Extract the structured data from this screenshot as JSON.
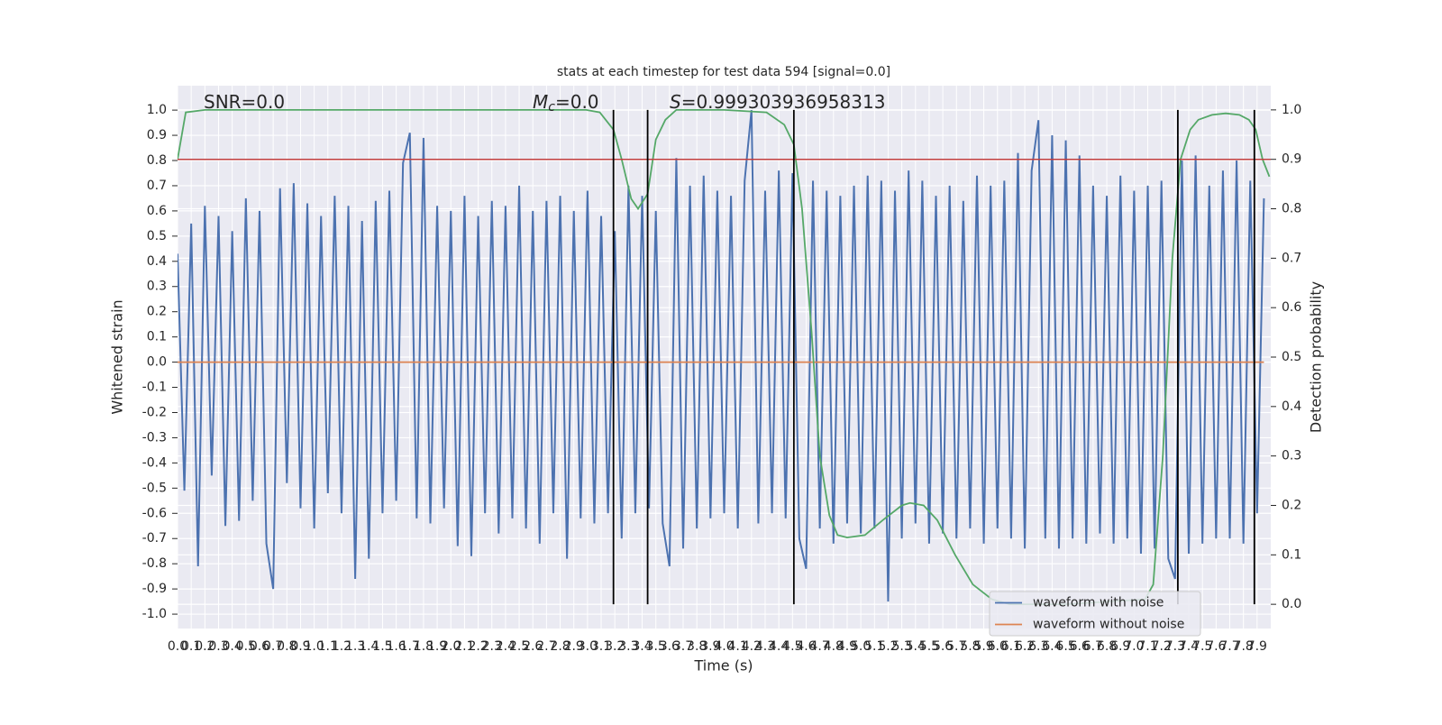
{
  "chart_data": {
    "type": "line",
    "title": "stats at each timestep for test data 594 [signal=0.0]",
    "xlabel": "Time (s)",
    "ylabel": "Whitened strain",
    "y2label": "Detection probability",
    "xlim": [
      0,
      8
    ],
    "ylim": [
      -1.057,
      1.097
    ],
    "y2lim": [
      -0.049,
      1.049
    ],
    "xticks": [
      {
        "value": 0,
        "label": "0.0"
      },
      0.1,
      0.2,
      0.3,
      0.4,
      0.5,
      0.6,
      0.7,
      0.8,
      0.9,
      {
        "value": 1,
        "label": "1.0"
      },
      1.1,
      1.2,
      1.3,
      1.4,
      1.5,
      1.6,
      1.7,
      1.8,
      1.9,
      {
        "value": 2,
        "label": "2.0"
      },
      2.1,
      2.2,
      2.3,
      2.4,
      2.5,
      2.6,
      2.7,
      2.8,
      2.9,
      {
        "value": 3,
        "label": "3.0"
      },
      3.1,
      3.2,
      3.3,
      3.4,
      3.5,
      3.6,
      3.7,
      3.8,
      3.9,
      {
        "value": 4,
        "label": "4.0"
      },
      4.1,
      4.2,
      4.3,
      4.4,
      4.5,
      4.6,
      4.7,
      4.8,
      4.9,
      {
        "value": 5,
        "label": "5.0"
      },
      5.1,
      5.2,
      5.3,
      5.4,
      5.5,
      5.6,
      5.7,
      5.8,
      5.9,
      {
        "value": 6,
        "label": "6.0"
      },
      6.1,
      6.2,
      6.3,
      6.4,
      6.5,
      6.6,
      6.7,
      6.8,
      6.9,
      {
        "value": 7,
        "label": "7.0"
      },
      7.1,
      7.2,
      7.3,
      7.4,
      7.5,
      7.6,
      7.7,
      7.8,
      7.9
    ],
    "yticks": [
      {
        "value": -1,
        "label": "-1.0"
      },
      -0.9,
      -0.8,
      -0.7,
      -0.6,
      -0.5,
      -0.4,
      -0.3,
      -0.2,
      -0.1,
      {
        "value": 0,
        "label": "0.0"
      },
      0.1,
      0.2,
      0.3,
      0.4,
      0.5,
      0.6,
      0.7,
      0.8,
      0.9,
      {
        "value": 1,
        "label": "1.0"
      }
    ],
    "y2ticks": [
      {
        "value": 0,
        "label": "0.0"
      },
      0.1,
      0.2,
      0.3,
      0.4,
      0.5,
      0.6,
      0.7,
      0.8,
      0.9,
      {
        "value": 1,
        "label": "1.0"
      }
    ],
    "grid": true,
    "legend": "lower right",
    "annotations": [
      {
        "text": "SNR=0.0"
      },
      {
        "italic": "M",
        "sub": "c",
        "text": "=0.0"
      },
      {
        "italic": "S",
        "text": "=0.999303936958313"
      }
    ],
    "threshold": {
      "value": 0.9,
      "axis": "y2",
      "color": "#c03d3e"
    },
    "vlines": [
      3.19,
      3.44,
      4.51,
      7.32,
      7.88
    ],
    "series": [
      {
        "name": "waveform with noise",
        "color": "#4c72b0",
        "legend": true,
        "x": [
          0,
          0.05,
          0.1,
          0.15,
          0.2,
          0.25,
          0.3,
          0.35,
          0.4,
          0.45,
          0.5,
          0.55,
          0.6,
          0.65,
          0.7,
          0.75,
          0.8,
          0.85,
          0.9,
          0.95,
          1,
          1.05,
          1.1,
          1.15,
          1.2,
          1.25,
          1.3,
          1.35,
          1.4,
          1.45,
          1.5,
          1.55,
          1.6,
          1.65,
          1.7,
          1.75,
          1.8,
          1.85,
          1.9,
          1.95,
          2,
          2.05,
          2.1,
          2.15,
          2.2,
          2.25,
          2.3,
          2.35,
          2.4,
          2.45,
          2.5,
          2.55,
          2.6,
          2.65,
          2.7,
          2.75,
          2.8,
          2.85,
          2.9,
          2.95,
          3,
          3.05,
          3.1,
          3.15,
          3.2,
          3.25,
          3.3,
          3.35,
          3.4,
          3.45,
          3.5,
          3.55,
          3.6,
          3.65,
          3.7,
          3.75,
          3.8,
          3.85,
          3.9,
          3.95,
          4,
          4.05,
          4.1,
          4.15,
          4.2,
          4.25,
          4.3,
          4.35,
          4.4,
          4.45,
          4.5,
          4.55,
          4.6,
          4.65,
          4.7,
          4.75,
          4.8,
          4.85,
          4.9,
          4.95,
          5,
          5.05,
          5.1,
          5.15,
          5.2,
          5.25,
          5.3,
          5.35,
          5.4,
          5.45,
          5.5,
          5.55,
          5.6,
          5.65,
          5.7,
          5.75,
          5.8,
          5.85,
          5.9,
          5.95,
          6,
          6.05,
          6.1,
          6.15,
          6.2,
          6.25,
          6.3,
          6.35,
          6.4,
          6.45,
          6.5,
          6.55,
          6.6,
          6.65,
          6.7,
          6.75,
          6.8,
          6.85,
          6.9,
          6.95,
          7,
          7.05,
          7.1,
          7.15,
          7.2,
          7.25,
          7.3,
          7.35,
          7.4,
          7.45,
          7.5,
          7.55,
          7.6,
          7.65,
          7.7,
          7.75,
          7.8,
          7.85,
          7.9,
          7.95
        ],
        "values": [
          0.43,
          -0.51,
          0.55,
          -0.81,
          0.62,
          -0.45,
          0.58,
          -0.65,
          0.52,
          -0.63,
          0.65,
          -0.55,
          0.6,
          -0.72,
          -0.9,
          0.69,
          -0.48,
          0.71,
          -0.58,
          0.63,
          -0.66,
          0.58,
          -0.52,
          0.66,
          -0.6,
          0.62,
          -0.86,
          0.56,
          -0.78,
          0.64,
          -0.6,
          0.68,
          -0.55,
          0.79,
          0.91,
          -0.62,
          0.89,
          -0.64,
          0.62,
          -0.58,
          0.6,
          -0.73,
          0.66,
          -0.77,
          0.58,
          -0.6,
          0.64,
          -0.68,
          0.62,
          -0.62,
          0.7,
          -0.66,
          0.6,
          -0.72,
          0.64,
          -0.6,
          0.66,
          -0.78,
          0.6,
          -0.62,
          0.68,
          -0.64,
          0.58,
          -0.6,
          0.52,
          -0.7,
          0.7,
          -0.6,
          0.66,
          -0.58,
          0.6,
          -0.64,
          -0.81,
          0.81,
          -0.74,
          0.7,
          -0.66,
          0.74,
          -0.62,
          0.68,
          -0.6,
          0.66,
          -0.66,
          0.72,
          1.0,
          -0.64,
          0.68,
          -0.6,
          0.76,
          -0.62,
          0.75,
          -0.7,
          -0.82,
          0.72,
          -0.66,
          0.68,
          -0.72,
          0.66,
          -0.64,
          0.7,
          -0.68,
          0.74,
          -0.66,
          0.72,
          -0.95,
          0.68,
          -0.7,
          0.76,
          -0.64,
          0.72,
          -0.72,
          0.66,
          -0.68,
          0.7,
          -0.7,
          0.64,
          -0.66,
          0.74,
          -0.72,
          0.7,
          -0.66,
          0.72,
          -0.7,
          0.83,
          -0.74,
          0.76,
          0.96,
          -0.7,
          0.9,
          -0.74,
          0.88,
          -0.7,
          0.82,
          -0.72,
          0.7,
          -0.68,
          0.66,
          -0.72,
          0.74,
          -0.7,
          0.68,
          -0.76,
          0.7,
          -0.74,
          0.72,
          -0.78,
          -0.86,
          0.8,
          -0.76,
          0.82,
          -0.72,
          0.7,
          -0.7,
          0.76,
          -0.7,
          0.8,
          -0.72,
          0.72,
          -0.6,
          0.65
        ]
      },
      {
        "name": "waveform without noise",
        "color": "#dd8452",
        "legend": true,
        "x": [
          0,
          7.95
        ],
        "values": [
          0,
          0
        ]
      },
      {
        "color": "#55a868",
        "axis": "y2",
        "legend": false,
        "x": [
          0,
          0.06,
          0.2,
          1,
          2,
          2.99,
          3.09,
          3.19,
          3.25,
          3.32,
          3.37,
          3.44,
          3.5,
          3.57,
          3.65,
          4,
          4.31,
          4.44,
          4.51,
          4.57,
          4.64,
          4.7,
          4.77,
          4.83,
          4.9,
          5.03,
          5.16,
          5.3,
          5.36,
          5.46,
          5.56,
          5.69,
          5.82,
          5.96,
          6.09,
          6.5,
          7.08,
          7.14,
          7.21,
          7.28,
          7.34,
          7.41,
          7.47,
          7.57,
          7.67,
          7.77,
          7.84,
          7.89,
          7.94,
          7.99
        ],
        "values": [
          0.9,
          0.995,
          1,
          1,
          1,
          1,
          0.995,
          0.96,
          0.9,
          0.82,
          0.8,
          0.83,
          0.94,
          0.98,
          1,
          1,
          0.995,
          0.97,
          0.93,
          0.8,
          0.55,
          0.3,
          0.18,
          0.14,
          0.135,
          0.14,
          0.17,
          0.2,
          0.205,
          0.2,
          0.17,
          0.1,
          0.04,
          0.01,
          0,
          0,
          0.01,
          0.04,
          0.3,
          0.7,
          0.9,
          0.96,
          0.98,
          0.99,
          0.993,
          0.99,
          0.98,
          0.96,
          0.9,
          0.865
        ]
      }
    ]
  }
}
